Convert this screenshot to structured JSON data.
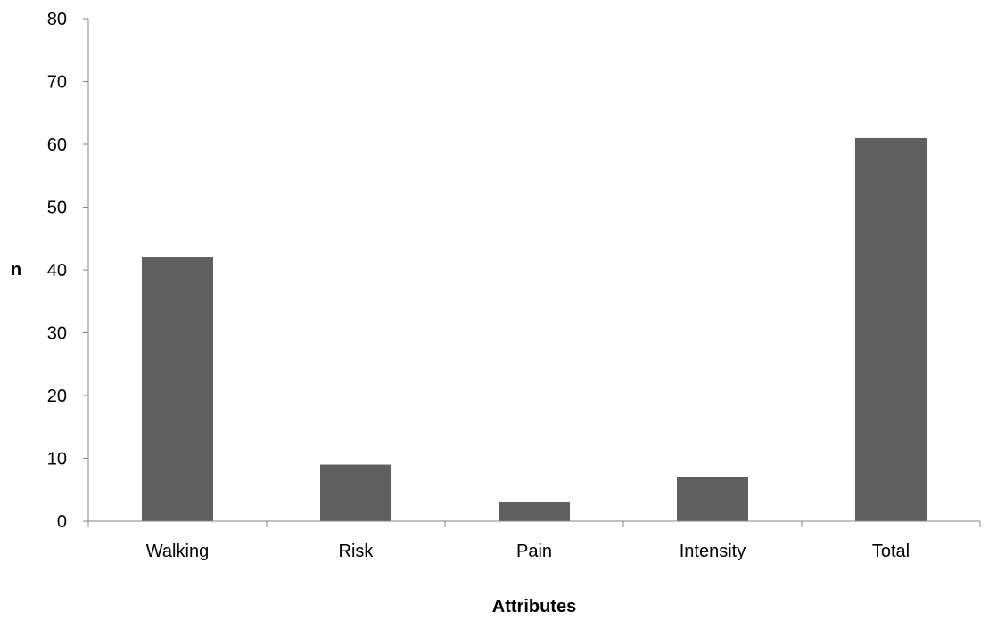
{
  "chart_data": {
    "type": "bar",
    "categories": [
      "Walking",
      "Risk",
      "Pain",
      "Intensity",
      "Total"
    ],
    "values": [
      42,
      9,
      3,
      7,
      61
    ],
    "xlabel": "Attributes",
    "ylabel": "n",
    "ylim": [
      0,
      80
    ],
    "yticks": [
      0,
      10,
      20,
      30,
      40,
      50,
      60,
      70,
      80
    ],
    "grid": false,
    "legend": "none",
    "bar_color": "#5f5f5f",
    "axis_color": "#868686"
  }
}
